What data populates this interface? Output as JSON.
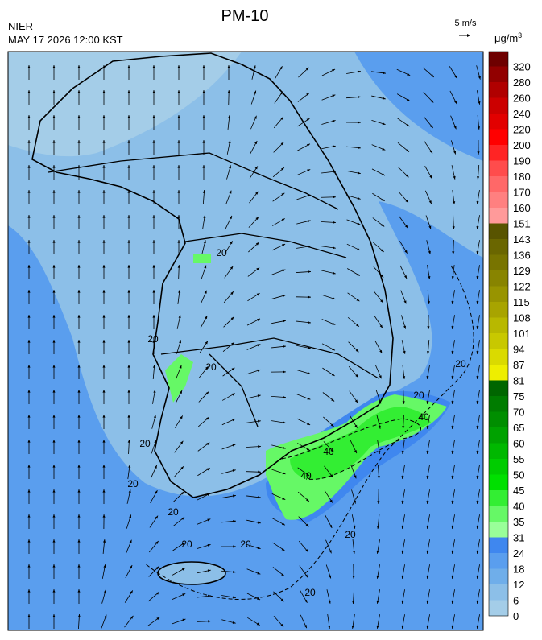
{
  "header": {
    "title": "PM-10",
    "agency": "NIER",
    "datetime": "MAY 17 2026 12:00 KST",
    "wind_scale": "5 m/s",
    "unit": "μg/m",
    "unit_exponent": "3"
  },
  "colorbar": {
    "labels": [
      0,
      6,
      12,
      18,
      24,
      31,
      35,
      40,
      45,
      50,
      55,
      60,
      65,
      70,
      75,
      81,
      87,
      94,
      101,
      108,
      115,
      122,
      129,
      136,
      143,
      151,
      160,
      170,
      180,
      190,
      200,
      220,
      240,
      260,
      280,
      320
    ],
    "colors": [
      "#a4cde8",
      "#8cbfe8",
      "#6faeea",
      "#5a9eee",
      "#3f87ef",
      "#99ff99",
      "#66f866",
      "#33ee33",
      "#00e000",
      "#00cc00",
      "#00b800",
      "#00a200",
      "#008e00",
      "#007c00",
      "#006600",
      "#eeee00",
      "#dada00",
      "#c8c800",
      "#b8b800",
      "#a8a400",
      "#989400",
      "#888400",
      "#787400",
      "#6a6600",
      "#585400",
      "#ff9a9a",
      "#ff8080",
      "#ff6868",
      "#ff4c4c",
      "#ff2424",
      "#ff0000",
      "#e20000",
      "#cc0000",
      "#b00000",
      "#920000",
      "#6e0000"
    ]
  },
  "map": {
    "contour_labels": [
      "20",
      "20",
      "20",
      "20",
      "20",
      "20",
      "20",
      "20",
      "20",
      "20",
      "40",
      "40",
      "40",
      "20",
      "20"
    ]
  }
}
